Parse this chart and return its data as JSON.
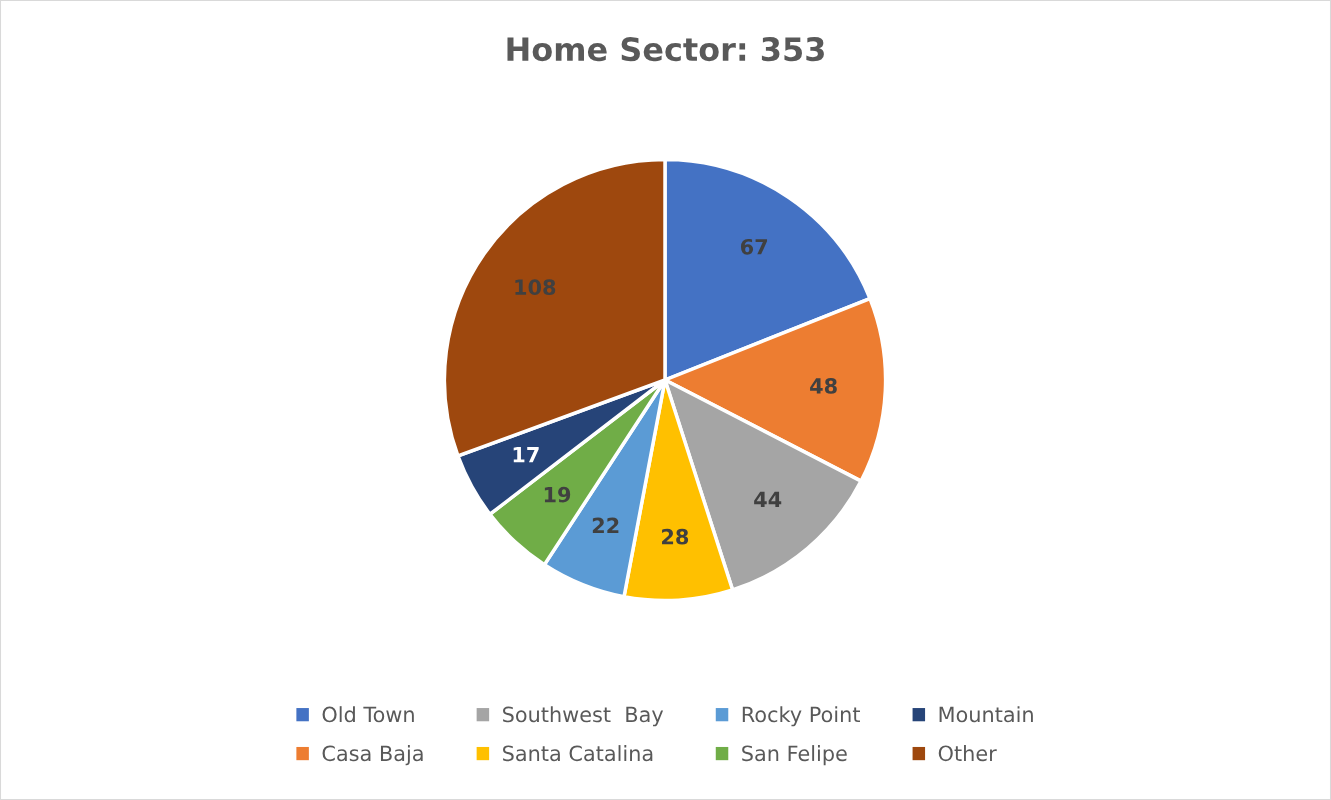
{
  "chart_data": {
    "type": "pie",
    "title": "Home Sector: 353",
    "categories": [
      "Old Town",
      "Casa Baja",
      "Southwest  Bay",
      "Santa Catalina",
      "Rocky Point",
      "San Felipe",
      "Mountain",
      "Other"
    ],
    "values": [
      67,
      48,
      44,
      28,
      22,
      19,
      17,
      108
    ],
    "colors": [
      "#4472c4",
      "#ed7d31",
      "#a5a5a5",
      "#ffc000",
      "#5b9bd5",
      "#70ad47",
      "#264478",
      "#9e480e"
    ],
    "data_labels": true,
    "legend": "bottom"
  }
}
